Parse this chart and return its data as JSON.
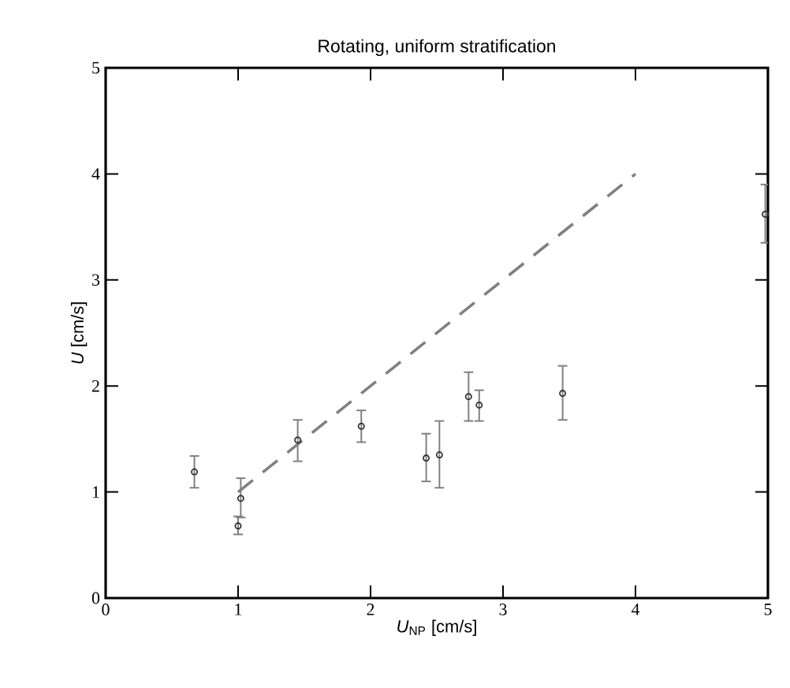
{
  "chart_data": {
    "type": "scatter",
    "title": "Rotating, uniform stratification",
    "xlabel": "*U*$_{NP}$ [cm/s]",
    "ylabel": "*U* [cm/s]",
    "xlim": [
      0,
      5
    ],
    "ylim": [
      0,
      5
    ],
    "xticks": [
      0,
      1,
      2,
      3,
      4,
      5
    ],
    "yticks": [
      0,
      1,
      2,
      3,
      4,
      5
    ],
    "grid": false,
    "marker": "circle",
    "series": [
      {
        "color": "#333333",
        "x": [
          0.67,
          1.0,
          1.02,
          1.45,
          1.93,
          2.42,
          2.52,
          2.74,
          2.82,
          3.45,
          4.98
        ],
        "values": [
          1.19,
          0.68,
          0.94,
          1.49,
          1.62,
          1.32,
          1.35,
          1.9,
          1.82,
          1.93,
          3.62
        ],
        "errors": [
          [
            1.04,
            1.34
          ],
          [
            0.6,
            0.77
          ],
          [
            0.76,
            1.13
          ],
          [
            1.29,
            1.68
          ],
          [
            1.47,
            1.77
          ],
          [
            1.1,
            1.55
          ],
          [
            1.04,
            1.67
          ],
          [
            1.67,
            2.13
          ],
          [
            1.67,
            1.96
          ],
          [
            1.68,
            2.19
          ],
          [
            3.35,
            3.9
          ]
        ]
      },
      {
        "type": "line",
        "color": "#808080",
        "line_style": "dashed",
        "marker": "none",
        "x": [
          1,
          4
        ],
        "values": [
          1,
          4
        ]
      }
    ]
  }
}
